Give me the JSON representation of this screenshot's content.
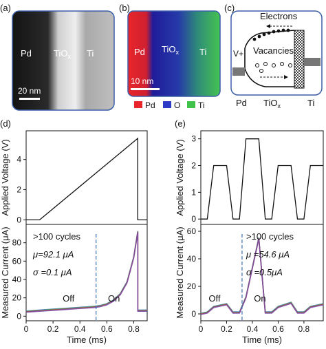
{
  "panels": {
    "a": {
      "tag": "(a)",
      "labels": [
        "Pd",
        "TiO",
        "x",
        "Ti"
      ],
      "scalebar": "20 nm"
    },
    "b": {
      "tag": "(b)",
      "labels": [
        "Pd",
        "TiO",
        "x",
        "Ti"
      ],
      "scalebar": "10 nm",
      "legend": [
        "Pd",
        "O",
        "Ti"
      ]
    },
    "c": {
      "tag": "(c)",
      "electrons": "Electrons",
      "vacancies": "Vacancies",
      "vplus": "V+",
      "bottom": [
        "Pd",
        "TiO",
        "x",
        "Ti"
      ]
    }
  },
  "colors": {
    "pd": "#e8262a",
    "o": "#2d3bc4",
    "ti": "#3fc24a",
    "voltage": "#111111",
    "current_trace": "#7a4bb0",
    "dashed_marker": "#3a6fb5"
  },
  "chart_data": [
    {
      "id": "d",
      "tag": "(d)",
      "type": "line",
      "voltage": {
        "ylabel": "Applied Voltage (V)",
        "ylim": [
          -0.3,
          5.9
        ],
        "yticks": [
          0,
          2,
          4
        ],
        "x": [
          0.0,
          0.1,
          0.83,
          0.83,
          0.9
        ],
        "y": [
          0.0,
          0.0,
          5.4,
          0.0,
          0.0
        ]
      },
      "current": {
        "ylabel": "Measured Current (μA)",
        "xlabel": "Time (ms)",
        "xlim": [
          0.0,
          0.9
        ],
        "xticks": [
          0.0,
          0.2,
          0.4,
          0.6,
          0.8
        ],
        "ylim": [
          -5,
          100
        ],
        "yticks": [
          0,
          20,
          40,
          60,
          80
        ],
        "x": [
          0.0,
          0.1,
          0.2,
          0.3,
          0.4,
          0.5,
          0.55,
          0.6,
          0.65,
          0.7,
          0.75,
          0.8,
          0.83,
          0.83,
          0.9
        ],
        "y": [
          5,
          6,
          7,
          8,
          9,
          10,
          11,
          13,
          17,
          24,
          37,
          64,
          92,
          6,
          6
        ],
        "marker_x": 0.52,
        "annotations": {
          "cycles": ">100 cycles",
          "mu": "μ=92.1 μA",
          "sigma": "σ =0.1 μA",
          "off": "Off",
          "on": "On"
        }
      }
    },
    {
      "id": "e",
      "tag": "(e)",
      "type": "line",
      "voltage": {
        "ylabel": "Applied Voltage (V)",
        "ylim": [
          -0.2,
          3.3
        ],
        "yticks": [
          0,
          1,
          2,
          3
        ],
        "x": [
          0.0,
          0.05,
          0.1,
          0.2,
          0.25,
          0.3,
          0.35,
          0.45,
          0.5,
          0.55,
          0.6,
          0.7,
          0.75,
          0.8,
          0.85,
          0.95
        ],
        "y": [
          0,
          0,
          2,
          2,
          0,
          0,
          3,
          3,
          0,
          0,
          2,
          2,
          0,
          0,
          2,
          2
        ]
      },
      "current": {
        "ylabel": "Measured Current (μA)",
        "xlabel": "Time (ms)",
        "xlim": [
          0.0,
          0.95
        ],
        "xticks": [
          0.0,
          0.2,
          0.4,
          0.6,
          0.8
        ],
        "ylim": [
          -5,
          65
        ],
        "yticks": [
          0,
          20,
          40,
          60
        ],
        "x": [
          0.0,
          0.05,
          0.1,
          0.2,
          0.25,
          0.3,
          0.35,
          0.45,
          0.5,
          0.55,
          0.6,
          0.7,
          0.75,
          0.8,
          0.85,
          0.95
        ],
        "y": [
          0,
          1,
          5,
          7,
          1,
          1,
          12,
          55,
          1,
          1,
          5,
          8,
          1,
          1,
          5,
          7
        ],
        "marker_x": 0.32,
        "annotations": {
          "cycles": ">100 cycles",
          "mu": "μ =54.6 μA",
          "sigma": "σ =0.5μA",
          "off": "Off",
          "on": "On"
        }
      }
    }
  ]
}
